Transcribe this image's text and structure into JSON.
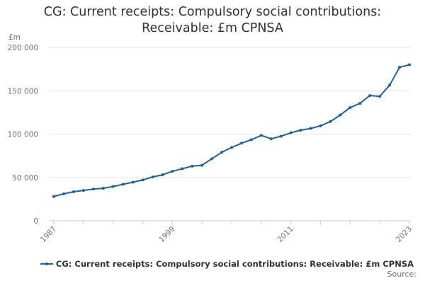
{
  "chart_data": {
    "type": "line",
    "title": "CG: Current receipts: Compulsory social contributions: Receivable: £m CPNSA",
    "unit_label": "£m",
    "xlabel": "",
    "ylabel": "£m",
    "ylim": [
      0,
      200000
    ],
    "xlim": [
      1987,
      2023
    ],
    "y_ticks": [
      0,
      50000,
      100000,
      150000,
      200000
    ],
    "y_tick_labels": [
      "0",
      "50 000",
      "100 000",
      "150 000",
      "200 000"
    ],
    "x_ticks": [
      1987,
      1999,
      2011,
      2023
    ],
    "x_tick_labels": [
      "1987",
      "1999",
      "2011",
      "2023"
    ],
    "grid": true,
    "legend_position": "bottom",
    "series": [
      {
        "name": "CG: Current receipts: Compulsory social contributions: Receivable: £m CPNSA",
        "color": "#206095",
        "x": [
          1987,
          1988,
          1989,
          1990,
          1991,
          1992,
          1993,
          1994,
          1995,
          1996,
          1997,
          1998,
          1999,
          2000,
          2001,
          2002,
          2003,
          2004,
          2005,
          2006,
          2007,
          2008,
          2009,
          2010,
          2011,
          2012,
          2013,
          2014,
          2015,
          2016,
          2017,
          2018,
          2019,
          2020,
          2021,
          2022,
          2023
        ],
        "values": [
          28000,
          31000,
          33500,
          35000,
          36500,
          37500,
          39500,
          42000,
          44500,
          47000,
          50500,
          53000,
          57000,
          60000,
          63000,
          64000,
          71500,
          79000,
          84500,
          89500,
          93500,
          98500,
          94500,
          97500,
          101500,
          104500,
          106500,
          109500,
          114500,
          122000,
          130500,
          135500,
          144500,
          143500,
          156500,
          177000,
          180000
        ]
      }
    ]
  },
  "legend": {
    "label": "CG: Current receipts: Compulsory social contributions: Receivable: £m CPNSA"
  },
  "source": {
    "label": "Source:"
  }
}
